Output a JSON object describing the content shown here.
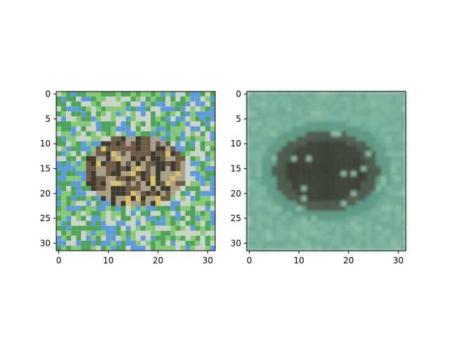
{
  "figure": {
    "panels": [
      {
        "id": "left",
        "description_role": "sharp input image",
        "x_ticks": [
          "0",
          "10",
          "20",
          "30"
        ],
        "y_ticks": [
          "0",
          "5",
          "10",
          "15",
          "20",
          "25",
          "30"
        ]
      },
      {
        "id": "right",
        "description_role": "blurred reconstruction",
        "x_ticks": [
          "0",
          "10",
          "20",
          "30"
        ],
        "y_ticks": [
          "0",
          "5",
          "10",
          "15",
          "20",
          "25",
          "30"
        ]
      }
    ],
    "pixel_grid": 32,
    "colors": {
      "background": "#ffffff",
      "axis": "#000000",
      "left_palette": [
        "#5f9bd8",
        "#4fa35a",
        "#86c77a",
        "#3f3a30",
        "#6b5a44",
        "#a89f86",
        "#d8c06a",
        "#c9d4c8"
      ],
      "right_palette": [
        "#6fa894",
        "#5f9a85",
        "#7cb39d",
        "#3b3f35",
        "#4d5a4c",
        "#8fbba6"
      ]
    }
  }
}
